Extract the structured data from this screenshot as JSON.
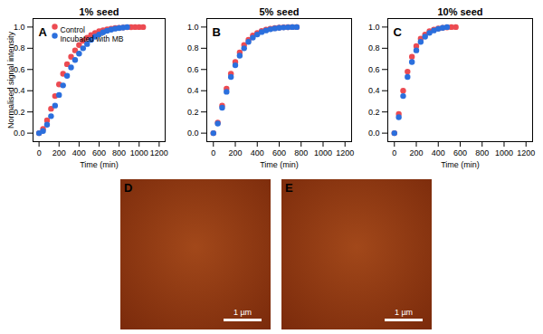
{
  "chart_data": [
    {
      "type": "scatter",
      "title": "1% seed",
      "annotations": [
        "A"
      ],
      "x_label": "Time (min)",
      "y_label": "Normalised signal intensity",
      "xlim": [
        -60,
        1260
      ],
      "xticks": [
        0,
        200,
        400,
        600,
        800,
        1000,
        1200
      ],
      "ylim": [
        -0.08,
        1.08
      ],
      "yticks": [
        {
          "value": 0,
          "label": "0.0"
        },
        {
          "value": 0.2,
          "label": "0.2"
        },
        {
          "value": 0.4,
          "label": "0.4"
        },
        {
          "value": 0.6,
          "label": "0.6"
        },
        {
          "value": 0.8,
          "label": "0.8"
        },
        {
          "value": 1,
          "label": "1.0"
        }
      ],
      "grid": false,
      "legend": "upper left",
      "marker": "circle",
      "series": [
        {
          "name": "Control",
          "color": "#ec4b52",
          "x": [
            0,
            40,
            80,
            120,
            160,
            200,
            240,
            280,
            320,
            360,
            400,
            440,
            480,
            520,
            560,
            600,
            640,
            680,
            720,
            760,
            800,
            840,
            880,
            920,
            960,
            1000,
            1040
          ],
          "values": [
            0,
            0.04,
            0.12,
            0.23,
            0.35,
            0.46,
            0.56,
            0.65,
            0.72,
            0.78,
            0.83,
            0.87,
            0.9,
            0.925,
            0.945,
            0.96,
            0.97,
            0.978,
            0.985,
            0.99,
            0.993,
            0.996,
            0.998,
            0.999,
            1.0,
            1.0,
            1.0
          ]
        },
        {
          "name": "Incubated with MB",
          "color": "#2b6fdd",
          "x": [
            0,
            40,
            80,
            120,
            160,
            200,
            240,
            280,
            320,
            360,
            400,
            440,
            480,
            520,
            560,
            600,
            640,
            680,
            720,
            760,
            800,
            840,
            880
          ],
          "values": [
            0,
            0.02,
            0.08,
            0.16,
            0.26,
            0.36,
            0.45,
            0.54,
            0.62,
            0.69,
            0.75,
            0.8,
            0.84,
            0.88,
            0.91,
            0.93,
            0.95,
            0.965,
            0.975,
            0.985,
            0.99,
            0.995,
            1.0
          ]
        }
      ]
    },
    {
      "type": "scatter",
      "title": "5% seed",
      "annotations": [
        "B"
      ],
      "x_label": "Time (min)",
      "xlim": [
        -60,
        1260
      ],
      "xticks": [
        0,
        200,
        400,
        600,
        800,
        1000,
        1200
      ],
      "ylim": [
        -0.08,
        1.08
      ],
      "yticks": [
        {
          "value": 0,
          "label": "0.0"
        },
        {
          "value": 0.2,
          "label": "0.2"
        },
        {
          "value": 0.4,
          "label": "0.4"
        },
        {
          "value": 0.6,
          "label": "0.6"
        },
        {
          "value": 0.8,
          "label": "0.8"
        },
        {
          "value": 1,
          "label": "1.0"
        }
      ],
      "grid": false,
      "marker": "circle",
      "series": [
        {
          "name": "Control",
          "color": "#ec4b52",
          "x": [
            0,
            40,
            80,
            120,
            160,
            200,
            240,
            280,
            320,
            360,
            400,
            440,
            480,
            520,
            560,
            600,
            640,
            680,
            720,
            760
          ],
          "values": [
            0,
            0.1,
            0.26,
            0.42,
            0.56,
            0.67,
            0.76,
            0.83,
            0.88,
            0.92,
            0.945,
            0.963,
            0.976,
            0.985,
            0.991,
            0.995,
            0.998,
            0.999,
            1.0,
            1.0
          ]
        },
        {
          "name": "Incubated with MB",
          "color": "#2b6fdd",
          "x": [
            0,
            40,
            80,
            120,
            160,
            200,
            240,
            280,
            320,
            360,
            400,
            440,
            480,
            520,
            560,
            600,
            640,
            680,
            720,
            760
          ],
          "values": [
            0,
            0.09,
            0.24,
            0.39,
            0.53,
            0.64,
            0.73,
            0.8,
            0.86,
            0.9,
            0.93,
            0.953,
            0.968,
            0.979,
            0.987,
            0.992,
            0.996,
            0.998,
            1.0,
            1.0
          ]
        }
      ]
    },
    {
      "type": "scatter",
      "title": "10% seed",
      "annotations": [
        "C"
      ],
      "x_label": "Time (min)",
      "xlim": [
        -60,
        1260
      ],
      "xticks": [
        0,
        200,
        400,
        600,
        800,
        1000,
        1200
      ],
      "ylim": [
        -0.08,
        1.08
      ],
      "yticks": [
        {
          "value": 0,
          "label": "0.0"
        },
        {
          "value": 0.2,
          "label": "0.2"
        },
        {
          "value": 0.4,
          "label": "0.4"
        },
        {
          "value": 0.6,
          "label": "0.6"
        },
        {
          "value": 0.8,
          "label": "0.8"
        },
        {
          "value": 1,
          "label": "1.0"
        }
      ],
      "grid": false,
      "marker": "circle",
      "series": [
        {
          "name": "Control",
          "color": "#ec4b52",
          "x": [
            0,
            40,
            80,
            120,
            160,
            200,
            240,
            280,
            320,
            360,
            400,
            440,
            480,
            520,
            560
          ],
          "values": [
            0,
            0.18,
            0.4,
            0.58,
            0.72,
            0.82,
            0.89,
            0.93,
            0.96,
            0.975,
            0.986,
            0.993,
            0.997,
            1.0,
            1.0
          ]
        },
        {
          "name": "Incubated with MB",
          "color": "#2b6fdd",
          "x": [
            0,
            40,
            80,
            120,
            160,
            200,
            240,
            280,
            320,
            360,
            400,
            440,
            480
          ],
          "values": [
            0,
            0.15,
            0.35,
            0.53,
            0.67,
            0.78,
            0.86,
            0.91,
            0.945,
            0.968,
            0.983,
            0.993,
            1.0
          ]
        }
      ]
    }
  ],
  "images": [
    {
      "label": "D",
      "scale_bar": "1 µm"
    },
    {
      "label": "E",
      "scale_bar": "1 µm"
    }
  ]
}
